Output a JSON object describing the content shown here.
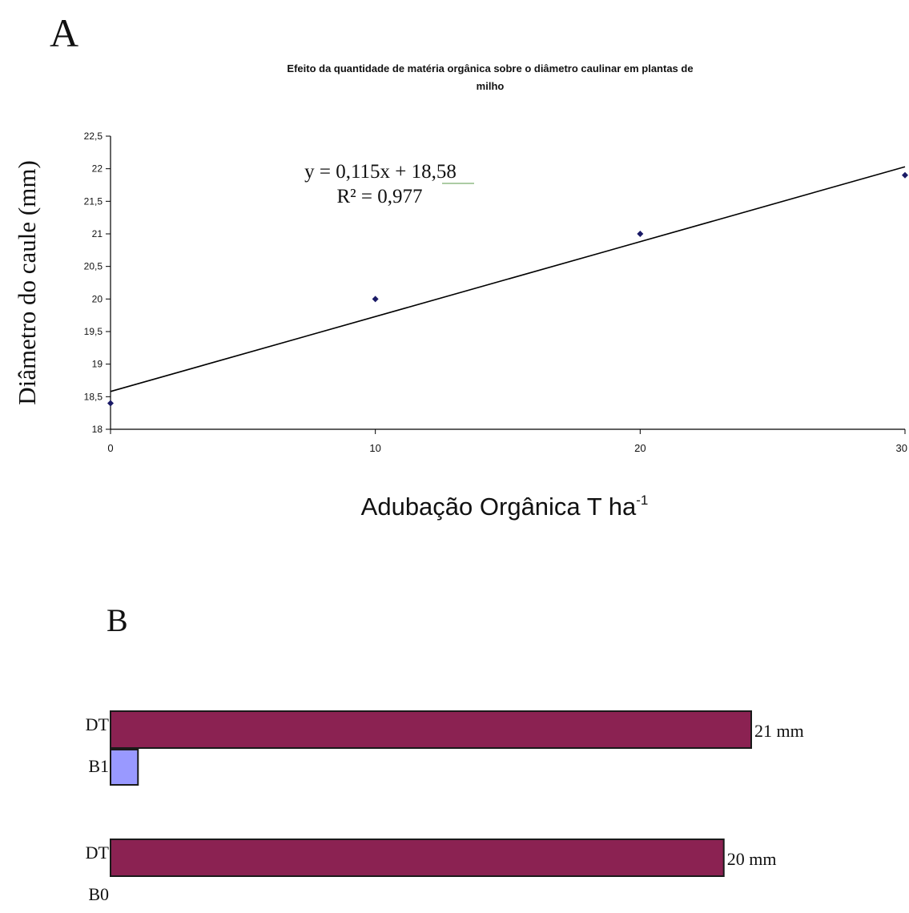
{
  "panel_a": {
    "letter": "A",
    "equation": "y = 0,115x + 18,58",
    "r_squared": "R² = 0,977"
  },
  "panel_b": {
    "letter": "B"
  },
  "chart_data": [
    {
      "type": "scatter",
      "title": "Efeito da quantidade de matéria orgânica sobre o diâmetro caulinar em plantas de milho",
      "xlabel": "Adubação Orgânica T ha",
      "xlabel_superscript": "-1",
      "ylabel": "Diâmetro do caule (mm)",
      "xlim": [
        0,
        30
      ],
      "ylim": [
        18,
        22.5
      ],
      "x_ticks": [
        0,
        10,
        20,
        30
      ],
      "x_tick_labels": [
        "0",
        "10",
        "20",
        "30"
      ],
      "y_ticks": [
        18,
        18.5,
        19,
        19.5,
        20,
        20.5,
        21,
        21.5,
        22,
        22.5
      ],
      "y_tick_labels": [
        "18",
        "18,5",
        "19",
        "19,5",
        "20",
        "20,5",
        "21",
        "21,5",
        "22",
        "22,5"
      ],
      "points": [
        {
          "x": 0,
          "y": 18.4
        },
        {
          "x": 10,
          "y": 20.0
        },
        {
          "x": 20,
          "y": 21.0
        },
        {
          "x": 30,
          "y": 21.9
        }
      ],
      "trendline": {
        "slope": 0.115,
        "intercept": 18.58
      },
      "grid": false,
      "point_color": "#1a1a66",
      "line_color": "#000000"
    },
    {
      "type": "bar",
      "orientation": "horizontal",
      "xlim": [
        0,
        21
      ],
      "groups": [
        {
          "bars": [
            {
              "label": "DT",
              "value": 21,
              "value_label": "21 mm",
              "color": "#8b2252"
            },
            {
              "label": "B1",
              "value": 0.9,
              "value_label": "",
              "color": "#9999ff"
            }
          ]
        },
        {
          "bars": [
            {
              "label": "DT",
              "value": 20.1,
              "value_label": "20 mm",
              "color": "#8b2252"
            },
            {
              "label": "B0",
              "value": 0,
              "value_label": "",
              "color": "#9999ff"
            }
          ]
        }
      ]
    }
  ]
}
